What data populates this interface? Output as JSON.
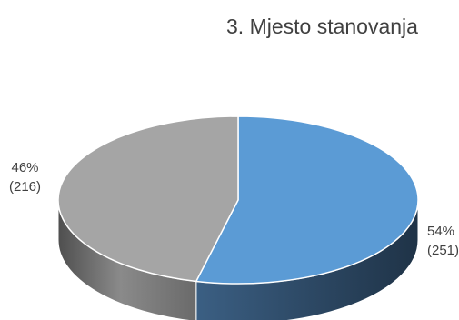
{
  "chart_data": {
    "type": "pie",
    "title": "3. Mjesto stanovanja",
    "three_d": true,
    "slices": [
      {
        "percent_label": "54%",
        "count_label": "(251)",
        "value": 251,
        "color": "#5b9bd5",
        "side_color": "#2e4a66"
      },
      {
        "percent_label": "46%",
        "count_label": "(216)",
        "value": 216,
        "color": "#a5a5a5",
        "side_color": "#6e6e6e"
      }
    ]
  }
}
